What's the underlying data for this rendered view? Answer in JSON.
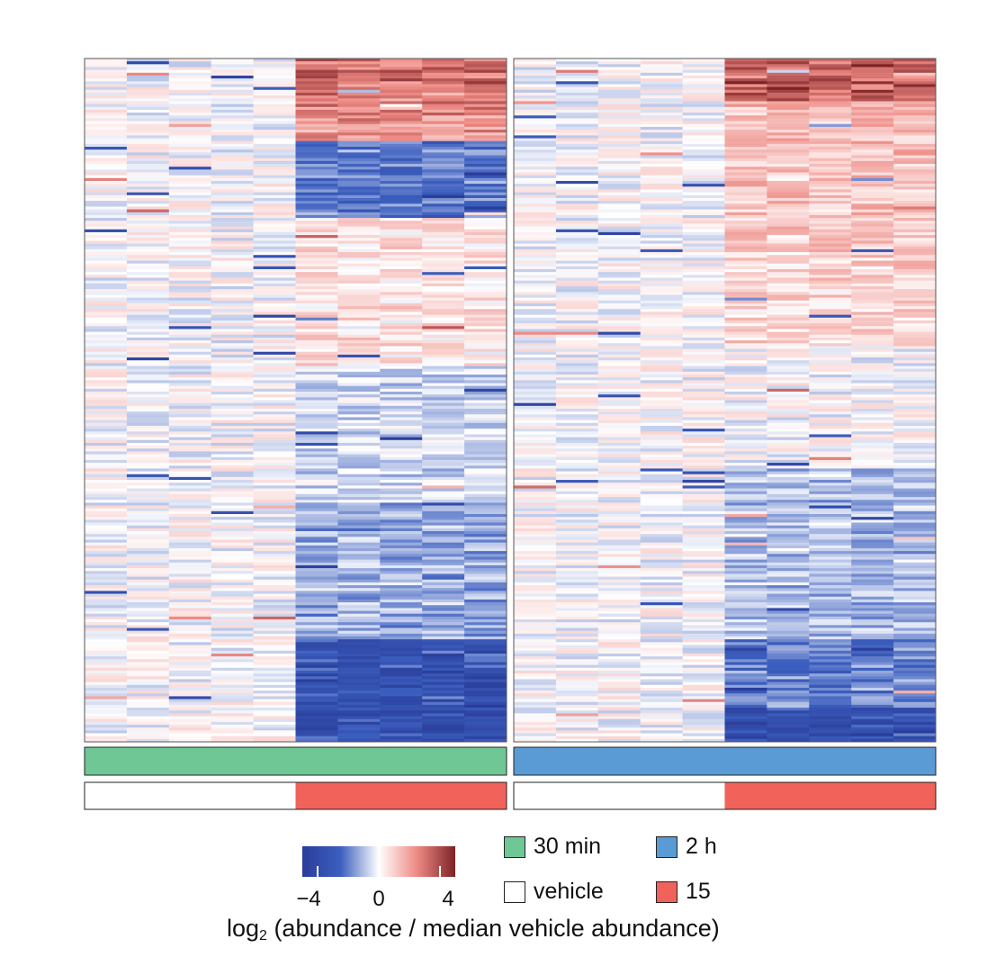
{
  "chart_data": {
    "type": "heatmap",
    "panels": [
      {
        "time_label": "30 min",
        "columns": 10,
        "column_time": [
          "30 min",
          "30 min",
          "30 min",
          "30 min",
          "30 min",
          "30 min",
          "30 min",
          "30 min",
          "30 min",
          "30 min"
        ],
        "column_treatment": [
          "vehicle",
          "vehicle",
          "vehicle",
          "vehicle",
          "vehicle",
          "15",
          "15",
          "15",
          "15",
          "15"
        ]
      },
      {
        "time_label": "2 h",
        "columns": 10,
        "column_time": [
          "2 h",
          "2 h",
          "2 h",
          "2 h",
          "2 h",
          "2 h",
          "2 h",
          "2 h",
          "2 h",
          "2 h"
        ],
        "column_treatment": [
          "vehicle",
          "vehicle",
          "vehicle",
          "vehicle",
          "vehicle",
          "15",
          "15",
          "15",
          "15",
          "15"
        ]
      }
    ],
    "row_count": 240,
    "value_range": [
      -5,
      5
    ],
    "colorbar": {
      "ticks": [
        -4,
        0,
        4
      ],
      "tick_labels": [
        "−4",
        "0",
        "4"
      ],
      "colors": [
        "#2a3d9a",
        "#3c5fbf",
        "#ffffff",
        "#ee8a84",
        "#7d2225"
      ]
    },
    "legend": {
      "time": [
        {
          "label": "30 min",
          "color": "#70c796"
        },
        {
          "label": "2 h",
          "color": "#5b9bd5"
        }
      ],
      "treatment": [
        {
          "label": "vehicle",
          "color": "#ffffff"
        },
        {
          "label": "15",
          "color": "#f0625a"
        }
      ]
    },
    "colorbar_label_main": "log",
    "colorbar_label_sub": "2",
    "colorbar_label_rest": " (abundance / median vehicle abundance)"
  }
}
